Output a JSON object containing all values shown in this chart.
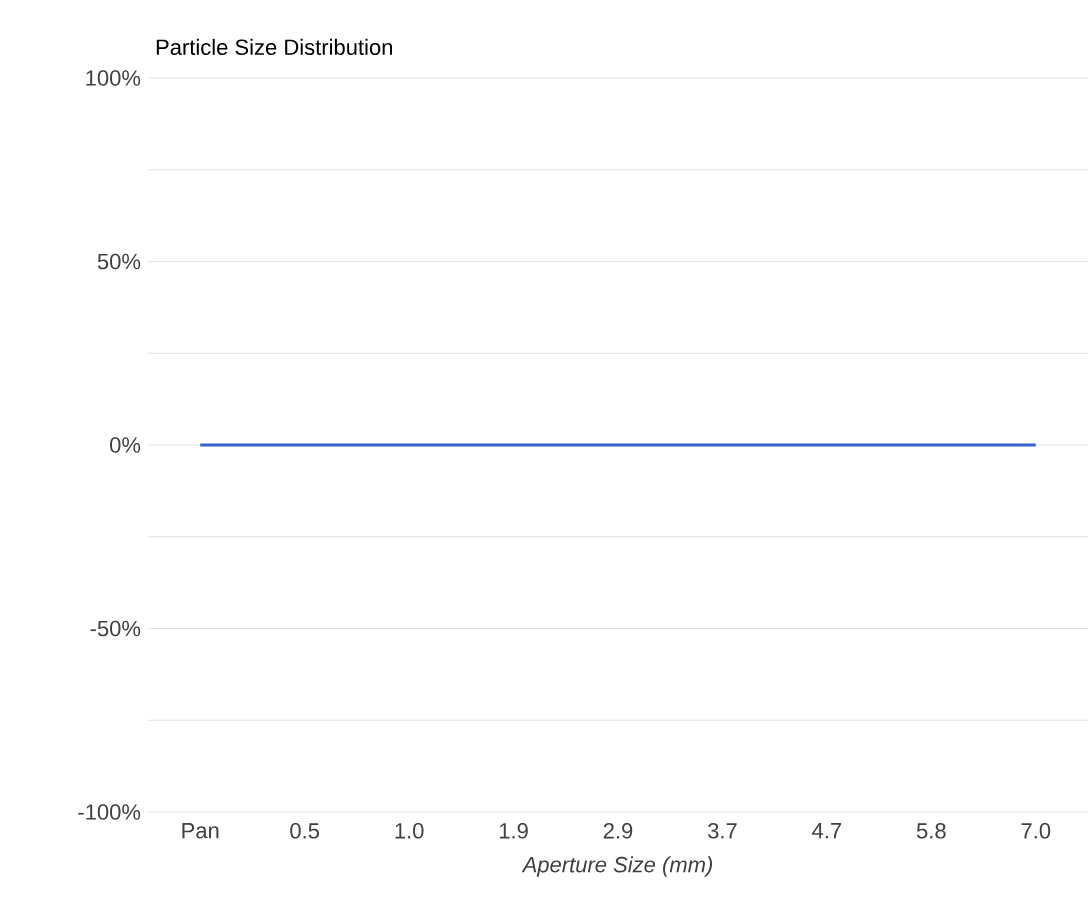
{
  "chart_data": {
    "type": "line",
    "title": "Particle Size Distribution",
    "xlabel": "Aperture Size (mm)",
    "categories": [
      "Pan",
      "0.5",
      "1.0",
      "1.9",
      "2.9",
      "3.7",
      "4.7",
      "5.8",
      "7.0"
    ],
    "series": [
      {
        "color": "#3366cc",
        "values": [
          0,
          0,
          0,
          0,
          0,
          0,
          0,
          0,
          0
        ]
      }
    ],
    "ylim": [
      -100,
      100
    ],
    "yticks": [
      {
        "value": -100,
        "label": "-100%"
      },
      {
        "value": -75,
        "label": null
      },
      {
        "value": -50,
        "label": "-50%"
      },
      {
        "value": -25,
        "label": null
      },
      {
        "value": 0,
        "label": "0%"
      },
      {
        "value": 25,
        "label": null
      },
      {
        "value": 50,
        "label": "50%"
      },
      {
        "value": 75,
        "label": null
      },
      {
        "value": 100,
        "label": "100%"
      }
    ],
    "grid": "y"
  }
}
